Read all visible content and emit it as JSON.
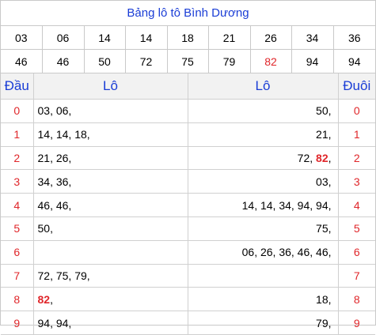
{
  "title": "Bảng lô tô Bình Dương",
  "numbers": {
    "row1": [
      "03",
      "06",
      "14",
      "14",
      "18",
      "21",
      "26",
      "34",
      "36"
    ],
    "row2": [
      "46",
      "46",
      "50",
      "72",
      "75",
      "79",
      "82",
      "94",
      "94"
    ]
  },
  "colors": {
    "blue": "#1a3dd6",
    "red": "#e0262a",
    "header_bg": "#f2f2f2"
  },
  "table": {
    "headers": {
      "dau": "Đầu",
      "lo_left": "Lô",
      "lo_right": "Lô",
      "duoi": "Đuôi"
    },
    "rows": [
      {
        "dau": "0",
        "left_a": "03, 06,",
        "left_hl": "",
        "left_b": "",
        "right_a": "50,",
        "right_hl": "",
        "right_b": "",
        "duoi": "0"
      },
      {
        "dau": "1",
        "left_a": "14, 14, 18,",
        "left_hl": "",
        "left_b": "",
        "right_a": "21,",
        "right_hl": "",
        "right_b": "",
        "duoi": "1"
      },
      {
        "dau": "2",
        "left_a": "21, 26,",
        "left_hl": "",
        "left_b": "",
        "right_a": "72, ",
        "right_hl": "82",
        "right_b": ",",
        "duoi": "2"
      },
      {
        "dau": "3",
        "left_a": "34, 36,",
        "left_hl": "",
        "left_b": "",
        "right_a": "03,",
        "right_hl": "",
        "right_b": "",
        "duoi": "3"
      },
      {
        "dau": "4",
        "left_a": "46, 46,",
        "left_hl": "",
        "left_b": "",
        "right_a": "14, 14, 34, 94, 94,",
        "right_hl": "",
        "right_b": "",
        "duoi": "4"
      },
      {
        "dau": "5",
        "left_a": "50,",
        "left_hl": "",
        "left_b": "",
        "right_a": "75,",
        "right_hl": "",
        "right_b": "",
        "duoi": "5"
      },
      {
        "dau": "6",
        "left_a": "",
        "left_hl": "",
        "left_b": "",
        "right_a": "06, 26, 36, 46, 46,",
        "right_hl": "",
        "right_b": "",
        "duoi": "6"
      },
      {
        "dau": "7",
        "left_a": "72, 75, 79,",
        "left_hl": "",
        "left_b": "",
        "right_a": "",
        "right_hl": "",
        "right_b": "",
        "duoi": "7"
      },
      {
        "dau": "8",
        "left_a": "",
        "left_hl": "82",
        "left_b": ",",
        "right_a": "18,",
        "right_hl": "",
        "right_b": "",
        "duoi": "8"
      },
      {
        "dau": "9",
        "left_a": "94, 94,",
        "left_hl": "",
        "left_b": "",
        "right_a": "79,",
        "right_hl": "",
        "right_b": "",
        "duoi": "9"
      }
    ]
  }
}
